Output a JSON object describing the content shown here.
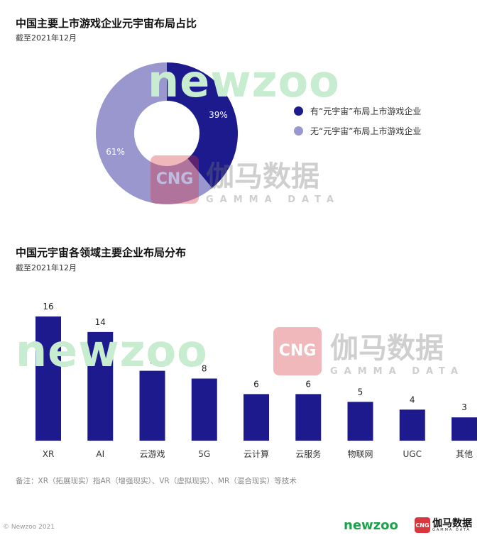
{
  "watermarks": {
    "newzoo": "newzoo",
    "cng_logo": "CNG",
    "cng_cn": "伽马数据",
    "cng_en": "GAMMA DATA"
  },
  "charts_meta": {
    "donut_title": "中国主要上市游戏企业元宇宙布局占比",
    "donut_subtitle": "截至2021年12月",
    "bar_title": "中国元宇宙各领域主要企业布局分布",
    "bar_subtitle": "截至2021年12月"
  },
  "chart_data": [
    {
      "type": "pie",
      "title": "中国主要上市游戏企业元宇宙布局占比",
      "subtitle": "截至2021年12月",
      "legend_position": "right",
      "slices": [
        {
          "label": "有“元宇宙”布局上市游戏企业",
          "value": 39,
          "display": "39%",
          "color": "#1c1a8c"
        },
        {
          "label": "无“元宇宙”布局上市游戏企业",
          "value": 61,
          "display": "61%",
          "color": "#9a97cf"
        }
      ]
    },
    {
      "type": "bar",
      "title": "中国元宇宙各领域主要企业布局分布",
      "subtitle": "截至2021年12月",
      "categories": [
        "XR",
        "AI",
        "云游戏",
        "5G",
        "云计算",
        "云服务",
        "物联网",
        "UGC",
        "其他"
      ],
      "values": [
        16,
        14,
        9,
        8,
        6,
        6,
        5,
        4,
        3
      ],
      "color": "#1c1a8c",
      "ylim": [
        0,
        16
      ],
      "grid": false
    }
  ],
  "footer": {
    "note": "备注：XR（拓展现实）指AR（增强现实）、VR（虚拟现实）、MR（混合现实）等技术",
    "copyright": "© Newzoo 2021",
    "brand_newzoo": "newzoo",
    "brand_cng_logo": "CNG",
    "brand_cng_cn": "伽马数据",
    "brand_cng_en": "GAMMA DATA"
  }
}
